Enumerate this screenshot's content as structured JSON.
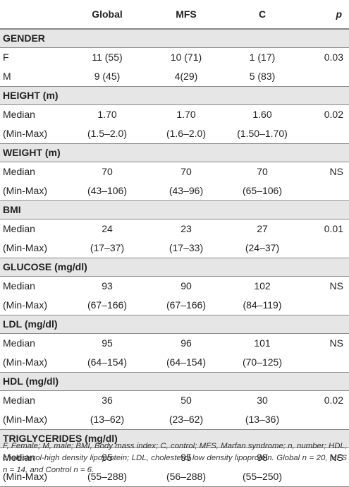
{
  "header": {
    "col0": "",
    "col1": "Global",
    "col2": "MFS",
    "col3": "C",
    "col4": "p"
  },
  "sections": [
    {
      "title": "GENDER",
      "rows": [
        {
          "label": "F",
          "global": "11 (55)",
          "mfs": "10 (71)",
          "c": "1 (17)",
          "p": "0.03"
        },
        {
          "label": "M",
          "global": "9 (45)",
          "mfs": "4(29)",
          "c": "5 (83)",
          "p": ""
        }
      ]
    },
    {
      "title": "HEIGHT (m)",
      "rows": [
        {
          "label": "Median",
          "global": "1.70",
          "mfs": "1.70",
          "c": "1.60",
          "p": "0.02"
        },
        {
          "label": "(Min-Max)",
          "global": "(1.5–2.0)",
          "mfs": "(1.6–2.0)",
          "c": "(1.50–1.70)",
          "p": ""
        }
      ]
    },
    {
      "title": "WEIGHT (m)",
      "rows": [
        {
          "label": "Median",
          "global": "70",
          "mfs": "70",
          "c": "70",
          "p": "NS"
        },
        {
          "label": "(Min-Max)",
          "global": "(43–106)",
          "mfs": "(43–96)",
          "c": "(65–106)",
          "p": ""
        }
      ]
    },
    {
      "title": "BMI",
      "rows": [
        {
          "label": "Median",
          "global": "24",
          "mfs": "23",
          "c": "27",
          "p": "0.01"
        },
        {
          "label": "(Min-Max)",
          "global": "(17–37)",
          "mfs": "(17–33)",
          "c": "(24–37)",
          "p": ""
        }
      ]
    },
    {
      "title": "GLUCOSE (mg/dl)",
      "rows": [
        {
          "label": "Median",
          "global": "93",
          "mfs": "90",
          "c": "102",
          "p": "NS"
        },
        {
          "label": "(Min-Max)",
          "global": "(67–166)",
          "mfs": "(67–166)",
          "c": "(84–119)",
          "p": ""
        }
      ]
    },
    {
      "title": "LDL (mg/dl)",
      "rows": [
        {
          "label": "Median",
          "global": "95",
          "mfs": "96",
          "c": "101",
          "p": "NS"
        },
        {
          "label": "(Min-Max)",
          "global": "(64–154)",
          "mfs": "(64–154)",
          "c": "(70–125)",
          "p": ""
        }
      ]
    },
    {
      "title": "HDL (mg/dl)",
      "rows": [
        {
          "label": "Median",
          "global": "36",
          "mfs": "50",
          "c": "30",
          "p": "0.02"
        },
        {
          "label": "(Min-Max)",
          "global": "(13–62)",
          "mfs": "(23–62)",
          "c": "(13–36)",
          "p": ""
        }
      ]
    },
    {
      "title": "TRIGLYCERIDES (mg/dl)",
      "rows": [
        {
          "label": "Median",
          "global": "95",
          "mfs": "95",
          "c": "98",
          "p": "NS"
        },
        {
          "label": "(Min-Max)",
          "global": "(55–288)",
          "mfs": "(56–288)",
          "c": "(55–250)",
          "p": ""
        }
      ]
    }
  ],
  "footnote": "F, Female; M, male; BMI, Body mass index; C, control; MFS, Marfan syndrome; n, number; HDL, cholesterol-high density lipoprotein; LDL, cholesterol low density lipoprotein. Global n = 20, MFS n = 14, and Control n = 6."
}
